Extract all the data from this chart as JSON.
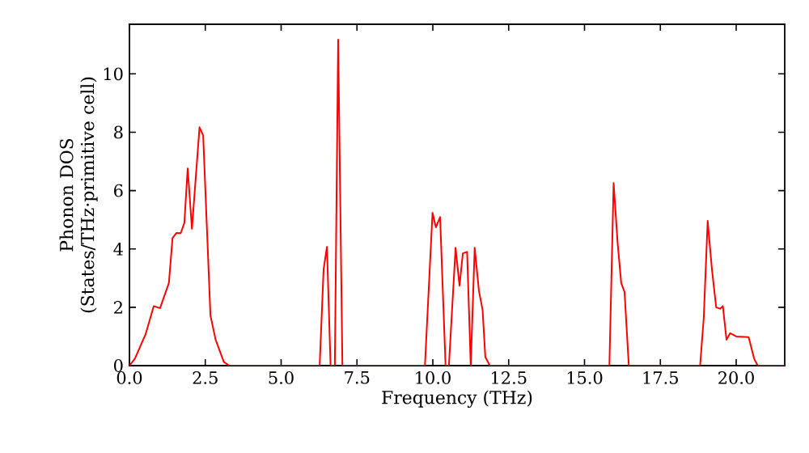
{
  "chart_data": {
    "type": "line",
    "xlabel": "Frequency (THz)",
    "ylabel": "Phonon DOS (States/THz·primitive cell)",
    "color": "#ff0000",
    "x": [
      0,
      0.18,
      0.53,
      0.8,
      1.01,
      1.3,
      1.42,
      1.55,
      1.69,
      1.81,
      1.92,
      2.06,
      2.31,
      2.43,
      2.67,
      2.84,
      3.11,
      3.29,
      6.27,
      6.4,
      6.51,
      6.63,
      6.77,
      6.88,
      7.02,
      9.74,
      9.99,
      10.1,
      10.24,
      10.42,
      10.53,
      10.75,
      10.88,
      10.99,
      11.13,
      11.25,
      11.38,
      11.52,
      11.64,
      11.73,
      11.88,
      15.82,
      15.96,
      16.09,
      16.21,
      16.32,
      16.46,
      18.81,
      18.93,
      19.06,
      19.2,
      19.34,
      19.47,
      19.56,
      19.68,
      19.8,
      20.0,
      20.41,
      20.59,
      20.71,
      21.6
    ],
    "values": [
      0,
      0.24,
      1.07,
      2.04,
      1.97,
      2.83,
      4.37,
      4.55,
      4.54,
      4.89,
      6.76,
      4.69,
      8.17,
      7.89,
      1.72,
      0.89,
      0.13,
      0,
      0,
      3.3,
      4.07,
      0,
      0,
      11.17,
      0,
      0,
      5.24,
      4.74,
      5.09,
      0,
      0,
      4.04,
      2.74,
      3.85,
      3.9,
      0,
      4.04,
      2.56,
      1.91,
      0.3,
      0,
      0,
      6.26,
      4.22,
      2.83,
      2.52,
      0,
      0,
      1.63,
      4.96,
      3.3,
      2.0,
      1.95,
      2.04,
      0.89,
      1.11,
      1.0,
      0.98,
      0.24,
      0,
      0
    ],
    "xlim": [
      0,
      21.6
    ],
    "ylim": [
      0,
      11.7
    ],
    "xticks": [
      {
        "value": 0,
        "label": "0.0"
      },
      2.5,
      {
        "value": 5,
        "label": "5.0"
      },
      7.5,
      {
        "value": 10,
        "label": "10.0"
      },
      12.5,
      {
        "value": 15,
        "label": "15.0"
      },
      17.5,
      {
        "value": 20,
        "label": "20.0"
      }
    ],
    "yticks": [
      0,
      2,
      4,
      6,
      8,
      10
    ]
  }
}
